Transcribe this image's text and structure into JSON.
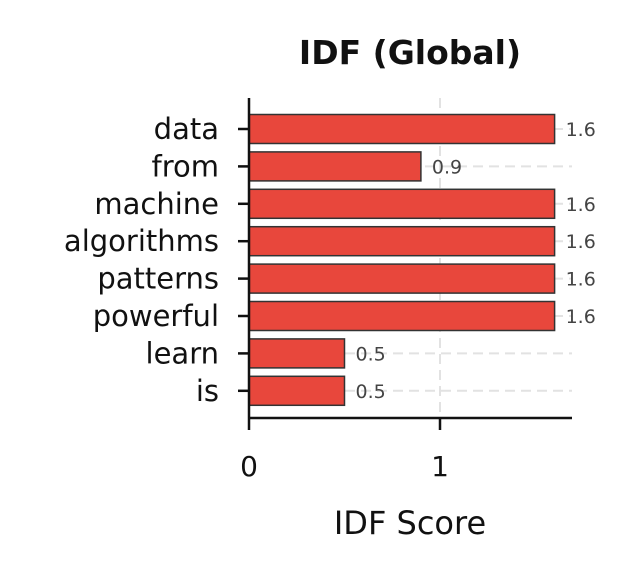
{
  "chart_data": {
    "type": "bar",
    "orientation": "horizontal",
    "title": "IDF (Global)",
    "xlabel": "IDF Score",
    "ylabel": "",
    "categories": [
      "data",
      "from",
      "machine",
      "algorithms",
      "patterns",
      "powerful",
      "learn",
      "is"
    ],
    "values": [
      1.6,
      0.9,
      1.6,
      1.6,
      1.6,
      1.6,
      0.5,
      0.5
    ],
    "data_labels": [
      "1.6",
      "0.9",
      "1.6",
      "1.6",
      "1.6",
      "1.6",
      "0.5",
      "0.5"
    ],
    "xticks": [
      0,
      1
    ],
    "xtick_labels": [
      "0",
      "1"
    ],
    "xlim": [
      0,
      1.69
    ],
    "grid": "x-dashed",
    "bar_color": "#e8473c",
    "edge_color": "#333333"
  }
}
